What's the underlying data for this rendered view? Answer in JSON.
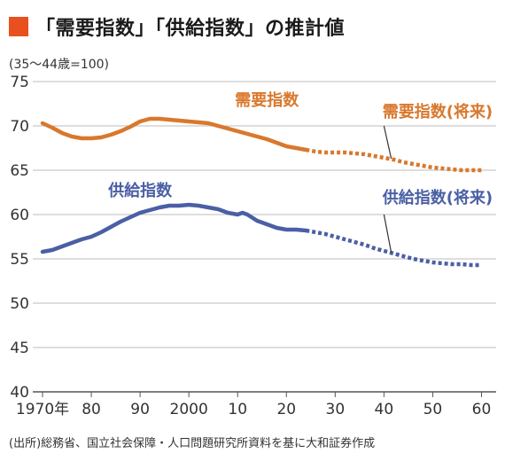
{
  "header": {
    "title": "「需要指数」「供給指数」の推計値",
    "title_mark_color": "#e8501f"
  },
  "subtitle": "(35〜44歳=100)",
  "source": "(出所)総務省、国立社会保障・人口問題研究所資料を基に大和証券作成",
  "chart_data": {
    "type": "line",
    "title": "「需要指数」「供給指数」の推計値",
    "subtitle": "(35〜44歳=100)",
    "x_tick_labels": [
      "1970年",
      "80",
      "90",
      "2000",
      "10",
      "20",
      "30",
      "40",
      "50",
      "60"
    ],
    "x_tick_values": [
      1970,
      1980,
      1990,
      2000,
      2010,
      2020,
      2030,
      2040,
      2050,
      2060
    ],
    "xlim": [
      1968,
      2063
    ],
    "y_ticks": [
      40,
      45,
      50,
      55,
      60,
      65,
      70,
      75
    ],
    "ylim": [
      40,
      75
    ],
    "grid": "horizontal",
    "series": [
      {
        "name": "需要指数",
        "color": "#d9782d",
        "style": "solid",
        "points": [
          [
            1970,
            70.3
          ],
          [
            1972,
            69.8
          ],
          [
            1974,
            69.2
          ],
          [
            1976,
            68.8
          ],
          [
            1978,
            68.6
          ],
          [
            1980,
            68.6
          ],
          [
            1982,
            68.7
          ],
          [
            1984,
            69.0
          ],
          [
            1986,
            69.4
          ],
          [
            1988,
            69.9
          ],
          [
            1990,
            70.5
          ],
          [
            1992,
            70.8
          ],
          [
            1994,
            70.8
          ],
          [
            1996,
            70.7
          ],
          [
            1998,
            70.6
          ],
          [
            2000,
            70.5
          ],
          [
            2002,
            70.4
          ],
          [
            2004,
            70.3
          ],
          [
            2006,
            70.0
          ],
          [
            2008,
            69.7
          ],
          [
            2010,
            69.4
          ],
          [
            2012,
            69.1
          ],
          [
            2014,
            68.8
          ],
          [
            2016,
            68.5
          ],
          [
            2018,
            68.1
          ],
          [
            2020,
            67.7
          ],
          [
            2022,
            67.5
          ],
          [
            2024,
            67.3
          ]
        ]
      },
      {
        "name": "需要指数(将来)",
        "color": "#d9782d",
        "style": "dotted",
        "points": [
          [
            2024,
            67.3
          ],
          [
            2026,
            67.1
          ],
          [
            2028,
            67.0
          ],
          [
            2030,
            67.0
          ],
          [
            2032,
            67.0
          ],
          [
            2034,
            66.9
          ],
          [
            2036,
            66.8
          ],
          [
            2038,
            66.6
          ],
          [
            2040,
            66.4
          ],
          [
            2042,
            66.2
          ],
          [
            2044,
            65.9
          ],
          [
            2046,
            65.7
          ],
          [
            2048,
            65.5
          ],
          [
            2050,
            65.3
          ],
          [
            2052,
            65.2
          ],
          [
            2054,
            65.1
          ],
          [
            2056,
            65.0
          ],
          [
            2058,
            65.0
          ],
          [
            2060,
            65.0
          ]
        ]
      },
      {
        "name": "供給指数",
        "color": "#4a5fa5",
        "style": "solid",
        "points": [
          [
            1970,
            55.8
          ],
          [
            1972,
            56.0
          ],
          [
            1974,
            56.4
          ],
          [
            1976,
            56.8
          ],
          [
            1978,
            57.2
          ],
          [
            1980,
            57.5
          ],
          [
            1982,
            58.0
          ],
          [
            1984,
            58.6
          ],
          [
            1986,
            59.2
          ],
          [
            1988,
            59.7
          ],
          [
            1990,
            60.2
          ],
          [
            1992,
            60.5
          ],
          [
            1994,
            60.8
          ],
          [
            1996,
            61.0
          ],
          [
            1998,
            61.0
          ],
          [
            2000,
            61.1
          ],
          [
            2002,
            61.0
          ],
          [
            2004,
            60.8
          ],
          [
            2006,
            60.6
          ],
          [
            2008,
            60.2
          ],
          [
            2010,
            60.0
          ],
          [
            2011,
            60.2
          ],
          [
            2012,
            60.0
          ],
          [
            2014,
            59.3
          ],
          [
            2016,
            58.9
          ],
          [
            2018,
            58.5
          ],
          [
            2020,
            58.3
          ],
          [
            2022,
            58.3
          ],
          [
            2024,
            58.2
          ]
        ]
      },
      {
        "name": "供給指数(将来)",
        "color": "#4a5fa5",
        "style": "dotted",
        "points": [
          [
            2024,
            58.2
          ],
          [
            2026,
            58.0
          ],
          [
            2028,
            57.8
          ],
          [
            2030,
            57.5
          ],
          [
            2032,
            57.2
          ],
          [
            2034,
            56.9
          ],
          [
            2036,
            56.6
          ],
          [
            2038,
            56.2
          ],
          [
            2040,
            55.9
          ],
          [
            2042,
            55.6
          ],
          [
            2044,
            55.3
          ],
          [
            2046,
            55.0
          ],
          [
            2048,
            54.8
          ],
          [
            2050,
            54.6
          ],
          [
            2052,
            54.5
          ],
          [
            2054,
            54.4
          ],
          [
            2056,
            54.4
          ],
          [
            2058,
            54.3
          ],
          [
            2060,
            54.3
          ]
        ]
      }
    ],
    "annotations": [
      {
        "text": "需要指数",
        "color": "#d9782d",
        "at": [
          2016,
          72.3
        ]
      },
      {
        "text": "需要指数(将来)",
        "color": "#d9782d",
        "at": [
          2051,
          71.0
        ],
        "leader": [
          [
            2040,
            70.0
          ],
          [
            2041.5,
            66.3
          ]
        ]
      },
      {
        "text": "供給指数",
        "color": "#4a5fa5",
        "at": [
          1990,
          62.1
        ]
      },
      {
        "text": "供給指数(将来)",
        "color": "#4a5fa5",
        "at": [
          2051,
          61.3
        ],
        "leader": [
          [
            2040,
            60.0
          ],
          [
            2041.5,
            55.7
          ]
        ]
      }
    ]
  }
}
